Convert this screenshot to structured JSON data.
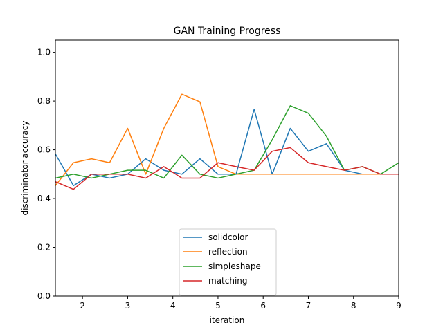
{
  "chart_data": {
    "type": "line",
    "title": "GAN Training Progress",
    "xlabel": "iteration",
    "ylabel": "discriminator accuracy",
    "xlim": [
      1.4,
      9.0
    ],
    "ylim": [
      0.0,
      1.05
    ],
    "xticks": [
      "2",
      "3",
      "4",
      "5",
      "6",
      "7",
      "8",
      "9"
    ],
    "yticks": [
      "0.0",
      "0.2",
      "0.4",
      "0.6",
      "0.8",
      "1.0"
    ],
    "grid": false,
    "legend_position": "bottom-center",
    "x": [
      1.4,
      1.8,
      2.2,
      2.6,
      3.0,
      3.4,
      3.8,
      4.2,
      4.6,
      5.0,
      5.4,
      5.8,
      6.2,
      6.6,
      7.0,
      7.4,
      7.8,
      8.2,
      8.6,
      9.0
    ],
    "series": [
      {
        "name": "solidcolor",
        "color": "#1f77b4",
        "values": [
          0.583,
          0.453,
          0.5,
          0.484,
          0.5,
          0.563,
          0.516,
          0.5,
          0.563,
          0.5,
          0.5,
          0.766,
          0.5,
          0.688,
          0.594,
          0.625,
          0.516,
          0.5,
          0.5,
          0.5
        ]
      },
      {
        "name": "reflection",
        "color": "#ff7f0e",
        "values": [
          0.453,
          0.547,
          0.563,
          0.547,
          0.688,
          0.5,
          0.688,
          0.828,
          0.797,
          0.531,
          0.5,
          0.5,
          0.5,
          0.5,
          0.5,
          0.5,
          0.5,
          0.5,
          0.5,
          0.5
        ]
      },
      {
        "name": "simpleshape",
        "color": "#2ca02c",
        "values": [
          0.484,
          0.5,
          0.484,
          0.5,
          0.516,
          0.516,
          0.484,
          0.578,
          0.5,
          0.484,
          0.5,
          0.516,
          0.641,
          0.781,
          0.75,
          0.656,
          0.516,
          0.531,
          0.5,
          0.547
        ]
      },
      {
        "name": "matching",
        "color": "#d62728",
        "values": [
          0.469,
          0.438,
          0.5,
          0.5,
          0.5,
          0.484,
          0.531,
          0.484,
          0.484,
          0.547,
          0.531,
          0.516,
          0.594,
          0.609,
          0.547,
          0.531,
          0.516,
          0.531,
          0.5,
          0.5
        ]
      }
    ]
  }
}
